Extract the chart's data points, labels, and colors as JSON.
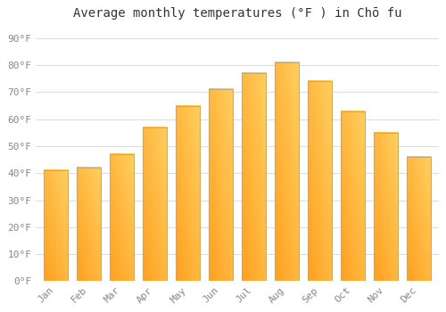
{
  "title": "Average monthly temperatures (°F ) in Chō fu",
  "months": [
    "Jan",
    "Feb",
    "Mar",
    "Apr",
    "May",
    "Jun",
    "Jul",
    "Aug",
    "Sep",
    "Oct",
    "Nov",
    "Dec"
  ],
  "values": [
    41,
    42,
    47,
    57,
    65,
    71,
    77,
    81,
    74,
    63,
    55,
    46
  ],
  "bar_color_light": "#FFD060",
  "bar_color_dark": "#FFA020",
  "bar_edge_color": "#CCAA66",
  "background_color": "#FFFFFF",
  "grid_color": "#DDDDDD",
  "ytick_labels": [
    "0°F",
    "10°F",
    "20°F",
    "30°F",
    "40°F",
    "50°F",
    "60°F",
    "70°F",
    "80°F",
    "90°F"
  ],
  "ytick_values": [
    0,
    10,
    20,
    30,
    40,
    50,
    60,
    70,
    80,
    90
  ],
  "ylim": [
    0,
    95
  ],
  "title_fontsize": 10,
  "tick_fontsize": 8,
  "tick_color": "#888888",
  "label_color": "#666666"
}
